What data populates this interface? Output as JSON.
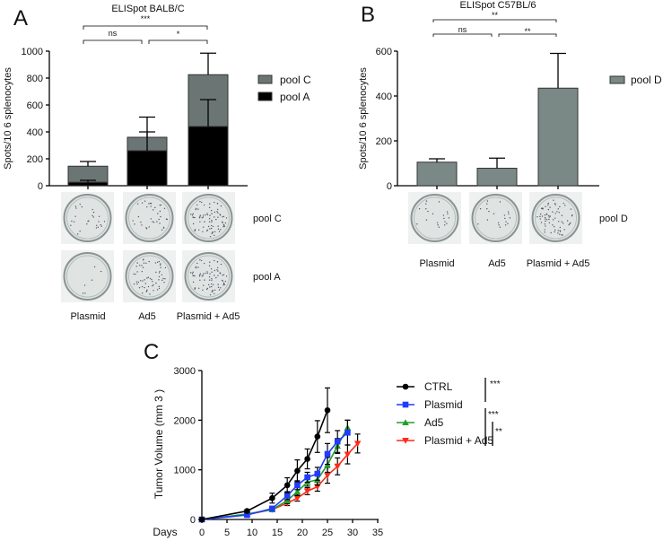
{
  "colors": {
    "poolC": "#6b7674",
    "poolA": "#000000",
    "poolD": "#7a8886",
    "ctrl": "#000000",
    "plasmid": "#1f3cff",
    "ad5": "#22a02a",
    "combo": "#ff2a1a"
  },
  "chart_data": [
    {
      "panel": "A",
      "type": "bar",
      "stacked": true,
      "title": "ELISpot BALB/C",
      "ylabel": "Spots/10 6 splenocytes",
      "ylim": [
        0,
        1000
      ],
      "yticks": [
        0,
        200,
        400,
        600,
        800,
        1000
      ],
      "categories": [
        "Plasmid",
        "Ad5",
        "Plasmid + Ad5"
      ],
      "series": [
        {
          "name": "pool A",
          "values": [
            25,
            260,
            440
          ],
          "error": [
            15,
            140,
            200
          ]
        },
        {
          "name": "pool C",
          "values": [
            120,
            100,
            385
          ],
          "error": [
            35,
            150,
            160
          ]
        }
      ],
      "legend": [
        "pool C",
        "pool A"
      ],
      "legend_position": "right",
      "significance": [
        {
          "label": "***",
          "from": 0,
          "to": 2
        },
        {
          "label": "ns",
          "from": 0,
          "to": 1
        },
        {
          "label": "*",
          "from": 1,
          "to": 2
        }
      ],
      "image_rows": [
        "pool C",
        "pool A"
      ]
    },
    {
      "panel": "B",
      "type": "bar",
      "title": "ELISpot C57BL/6",
      "ylabel": "Spots/10 6 splenocytes",
      "ylim": [
        0,
        600
      ],
      "yticks": [
        0,
        200,
        400,
        600
      ],
      "categories": [
        "Plasmid",
        "Ad5",
        "Plasmid + Ad5"
      ],
      "series": [
        {
          "name": "pool D",
          "values": [
            105,
            78,
            435
          ],
          "error": [
            15,
            45,
            155
          ]
        }
      ],
      "legend": [
        "pool D"
      ],
      "legend_position": "right",
      "significance": [
        {
          "label": "**",
          "from": 0,
          "to": 2
        },
        {
          "label": "ns",
          "from": 0,
          "to": 1
        },
        {
          "label": "**",
          "from": 1,
          "to": 2
        }
      ],
      "image_rows": [
        "pool D"
      ]
    },
    {
      "panel": "C",
      "type": "line",
      "xlabel": "Days",
      "ylabel": "Tumor Volume (mm 3 )",
      "xlim": [
        0,
        35
      ],
      "xticks": [
        0,
        5,
        10,
        15,
        20,
        25,
        30,
        35
      ],
      "ylim": [
        0,
        3000
      ],
      "yticks": [
        0,
        1000,
        2000,
        3000
      ],
      "series": [
        {
          "name": "CTRL",
          "marker": "circle",
          "x": [
            0,
            9,
            14,
            17,
            19,
            21,
            23,
            25
          ],
          "y": [
            0,
            170,
            430,
            690,
            980,
            1220,
            1670,
            2200
          ],
          "error": [
            0,
            30,
            100,
            150,
            220,
            200,
            320,
            450
          ]
        },
        {
          "name": "Plasmid",
          "marker": "square",
          "x": [
            0,
            9,
            14,
            17,
            19,
            21,
            23,
            25,
            27,
            29
          ],
          "y": [
            0,
            90,
            220,
            480,
            690,
            850,
            920,
            1320,
            1570,
            1750
          ],
          "error": [
            0,
            20,
            40,
            80,
            90,
            100,
            130,
            210,
            220,
            250
          ]
        },
        {
          "name": "Ad5",
          "marker": "triangle-up",
          "x": [
            0,
            9,
            14,
            17,
            19,
            21,
            23,
            25,
            27,
            29
          ],
          "y": [
            0,
            110,
            200,
            380,
            560,
            750,
            800,
            1100,
            1480,
            1850
          ],
          "error": [
            0,
            20,
            40,
            60,
            80,
            80,
            110,
            150,
            150,
            150
          ]
        },
        {
          "name": "Plasmid + Ad5",
          "marker": "triangle-down",
          "x": [
            0,
            9,
            14,
            17,
            19,
            21,
            23,
            25,
            27,
            29,
            31
          ],
          "y": [
            0,
            100,
            200,
            330,
            430,
            570,
            660,
            890,
            1070,
            1310,
            1530
          ],
          "error": [
            0,
            20,
            30,
            50,
            60,
            70,
            90,
            160,
            170,
            190,
            190
          ]
        }
      ],
      "legend_position": "right",
      "significance": [
        {
          "label": "***"
        },
        {
          "label": "***"
        },
        {
          "label": "**"
        }
      ]
    }
  ]
}
